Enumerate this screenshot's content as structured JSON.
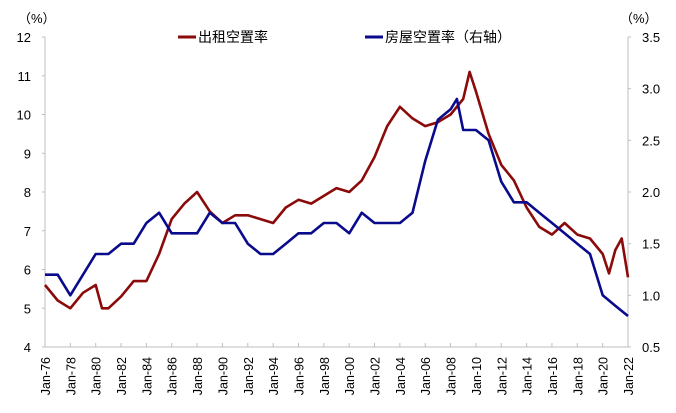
{
  "chart_data": {
    "type": "line",
    "title": "",
    "left_unit": "（%）",
    "right_unit": "（%）",
    "xlabel": "",
    "left_ylim": [
      4,
      12
    ],
    "right_ylim": [
      0.5,
      3.5
    ],
    "left_ticks": [
      "4",
      "5",
      "6",
      "7",
      "8",
      "9",
      "10",
      "11",
      "12"
    ],
    "right_ticks": [
      "0.5",
      "1.0",
      "1.5",
      "2.0",
      "2.5",
      "3.0",
      "3.5"
    ],
    "x_range": [
      1976,
      2022
    ],
    "x_ticks": [
      "Jan-76",
      "Jan-78",
      "Jan-80",
      "Jan-82",
      "Jan-84",
      "Jan-86",
      "Jan-88",
      "Jan-90",
      "Jan-92",
      "Jan-94",
      "Jan-96",
      "Jan-98",
      "Jan-00",
      "Jan-02",
      "Jan-04",
      "Jan-06",
      "Jan-08",
      "Jan-10",
      "Jan-12",
      "Jan-14",
      "Jan-16",
      "Jan-18",
      "Jan-20",
      "Jan-22"
    ],
    "legend_position": "top",
    "grid": false,
    "series": [
      {
        "name": "出租空置率",
        "axis": "left",
        "color": "#8B0A0A",
        "x": [
          1976,
          1977,
          1978,
          1979,
          1980,
          1980.5,
          1981,
          1982,
          1983,
          1984,
          1985,
          1986,
          1987,
          1988,
          1989,
          1990,
          1991,
          1992,
          1993,
          1994,
          1995,
          1996,
          1997,
          1998,
          1999,
          2000,
          2001,
          2002,
          2003,
          2004,
          2005,
          2006,
          2007,
          2008,
          2009,
          2009.5,
          2010,
          2011,
          2012,
          2013,
          2014,
          2015,
          2016,
          2017,
          2018,
          2019,
          2020,
          2020.5,
          2021,
          2021.5,
          2022
        ],
        "values": [
          5.6,
          5.2,
          5.0,
          5.4,
          5.6,
          5.0,
          5.0,
          5.3,
          5.7,
          5.7,
          6.4,
          7.3,
          7.7,
          8.0,
          7.5,
          7.2,
          7.4,
          7.4,
          7.3,
          7.2,
          7.6,
          7.8,
          7.7,
          7.9,
          8.1,
          8.0,
          8.3,
          8.9,
          9.7,
          10.2,
          9.9,
          9.7,
          9.8,
          10.0,
          10.4,
          11.1,
          10.6,
          9.5,
          8.7,
          8.3,
          7.6,
          7.1,
          6.9,
          7.2,
          6.9,
          6.8,
          6.4,
          5.9,
          6.5,
          6.8,
          5.8
        ]
      },
      {
        "name": "房屋空置率（右轴）",
        "axis": "right",
        "color": "#0A0A8C",
        "x": [
          1976,
          1977,
          1978,
          1979,
          1980,
          1981,
          1982,
          1983,
          1984,
          1985,
          1986,
          1987,
          1988,
          1989,
          1990,
          1991,
          1992,
          1993,
          1994,
          1995,
          1996,
          1997,
          1998,
          1999,
          2000,
          2001,
          2002,
          2003,
          2004,
          2005,
          2006,
          2007,
          2008,
          2008.5,
          2009,
          2010,
          2011,
          2012,
          2013,
          2014,
          2015,
          2016,
          2017,
          2018,
          2019,
          2020,
          2021,
          2022
        ],
        "values": [
          1.2,
          1.2,
          1.0,
          1.2,
          1.4,
          1.4,
          1.5,
          1.5,
          1.7,
          1.8,
          1.6,
          1.6,
          1.6,
          1.8,
          1.7,
          1.7,
          1.5,
          1.4,
          1.4,
          1.5,
          1.6,
          1.6,
          1.7,
          1.7,
          1.6,
          1.8,
          1.7,
          1.7,
          1.7,
          1.8,
          2.3,
          2.7,
          2.8,
          2.9,
          2.6,
          2.6,
          2.5,
          2.1,
          1.9,
          1.9,
          1.8,
          1.7,
          1.6,
          1.5,
          1.4,
          1.0,
          0.9,
          0.8
        ]
      }
    ]
  }
}
